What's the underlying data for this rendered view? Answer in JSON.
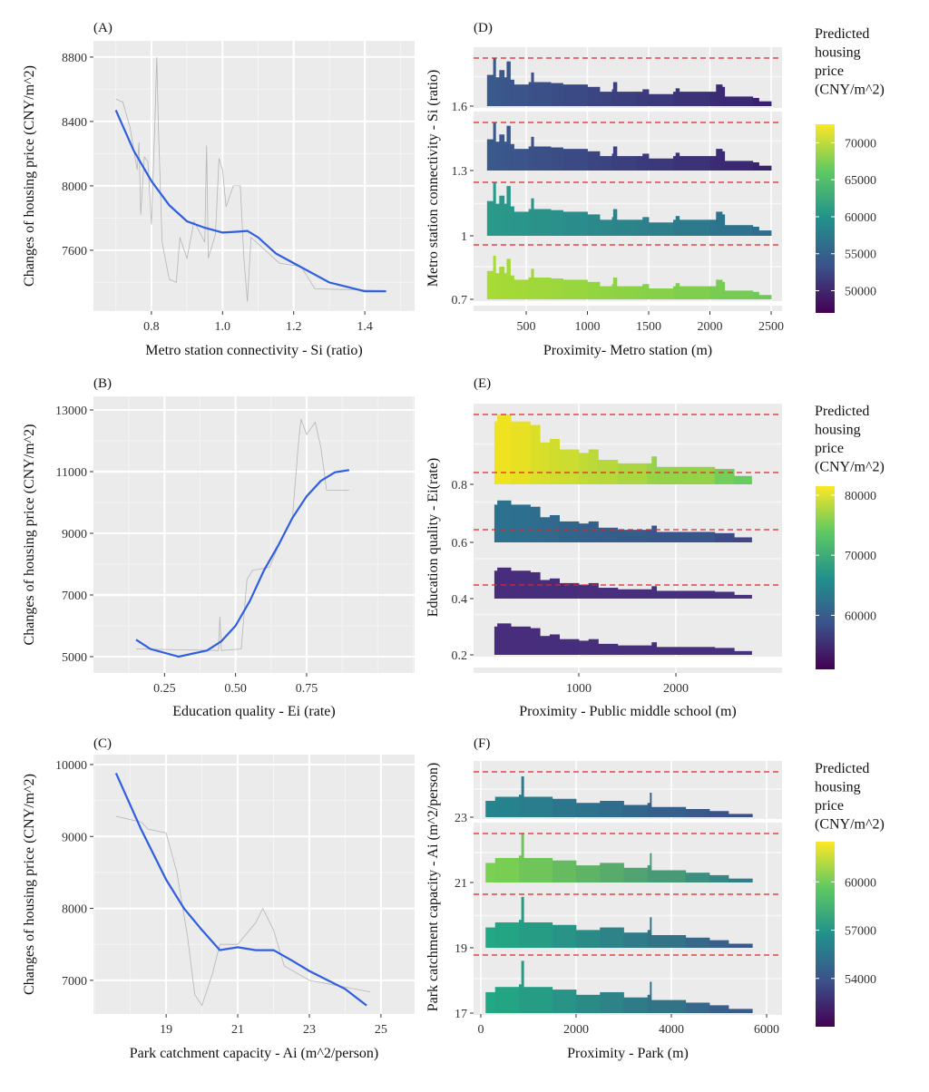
{
  "chart_data": [
    {
      "type": "line",
      "panel_label": "(A)",
      "xlabel": "Metro station connectivity - Si (ratio)",
      "ylabel": "Changes of housing price (CNY/m^2)",
      "xlim": [
        0.637,
        1.54
      ],
      "ylim": [
        7222,
        8901
      ],
      "xticks": [
        0.8,
        1.0,
        1.2,
        1.4
      ],
      "xtick_labels": [
        "0.8",
        "1.0",
        "1.2",
        "1.4"
      ],
      "yticks": [
        7600,
        8000,
        8400,
        8800
      ],
      "ytick_labels": [
        "7600",
        "8000",
        "8400",
        "8800"
      ],
      "grid": true,
      "series": [
        {
          "name": "raw",
          "color": "#b5b5b5",
          "points": [
            [
              0.7,
              8540
            ],
            [
              0.72,
              8520
            ],
            [
              0.74,
              8360
            ],
            [
              0.76,
              8100
            ],
            [
              0.765,
              8270
            ],
            [
              0.77,
              7820
            ],
            [
              0.78,
              8180
            ],
            [
              0.79,
              8150
            ],
            [
              0.8,
              7760
            ],
            [
              0.81,
              8400
            ],
            [
              0.815,
              8800
            ],
            [
              0.82,
              8350
            ],
            [
              0.83,
              7650
            ],
            [
              0.85,
              7420
            ],
            [
              0.87,
              7400
            ],
            [
              0.88,
              7680
            ],
            [
              0.9,
              7550
            ],
            [
              0.92,
              7780
            ],
            [
              0.95,
              7650
            ],
            [
              0.955,
              8250
            ],
            [
              0.96,
              7550
            ],
            [
              0.98,
              7700
            ],
            [
              0.99,
              8170
            ],
            [
              1.0,
              8100
            ],
            [
              1.01,
              7870
            ],
            [
              1.03,
              8000
            ],
            [
              1.05,
              8000
            ],
            [
              1.06,
              7550
            ],
            [
              1.07,
              7280
            ],
            [
              1.08,
              7680
            ],
            [
              1.16,
              7520
            ],
            [
              1.22,
              7500
            ],
            [
              1.26,
              7360
            ],
            [
              1.46,
              7350
            ]
          ]
        },
        {
          "name": "smooth",
          "color": "#2f5fe0",
          "points": [
            [
              0.7,
              8470
            ],
            [
              0.75,
              8220
            ],
            [
              0.8,
              8030
            ],
            [
              0.85,
              7880
            ],
            [
              0.9,
              7780
            ],
            [
              0.95,
              7740
            ],
            [
              1.0,
              7710
            ],
            [
              1.04,
              7715
            ],
            [
              1.07,
              7720
            ],
            [
              1.1,
              7680
            ],
            [
              1.15,
              7580
            ],
            [
              1.2,
              7520
            ],
            [
              1.3,
              7400
            ],
            [
              1.4,
              7345
            ],
            [
              1.46,
              7345
            ]
          ]
        }
      ]
    },
    {
      "type": "line",
      "panel_label": "(B)",
      "xlabel": "Education quality - Ei (rate)",
      "ylabel": "Changes of housing price (CNY/m^2)",
      "xlim": [
        0.0,
        1.13
      ],
      "ylim": [
        4471,
        13441
      ],
      "xticks": [
        0.25,
        0.5,
        0.75
      ],
      "xtick_labels": [
        "0.25",
        "0.50",
        "0.75"
      ],
      "yticks": [
        5000,
        7000,
        9000,
        11000,
        13000
      ],
      "ytick_labels": [
        "5000",
        "7000",
        "9000",
        "11000",
        "13000"
      ],
      "grid": true,
      "series": [
        {
          "name": "raw",
          "color": "#b5b5b5",
          "points": [
            [
              0.15,
              5250
            ],
            [
              0.44,
              5200
            ],
            [
              0.445,
              6300
            ],
            [
              0.45,
              5200
            ],
            [
              0.52,
              5250
            ],
            [
              0.54,
              7500
            ],
            [
              0.56,
              7800
            ],
            [
              0.62,
              7900
            ],
            [
              0.66,
              8800
            ],
            [
              0.7,
              9500
            ],
            [
              0.72,
              11800
            ],
            [
              0.73,
              12700
            ],
            [
              0.75,
              12200
            ],
            [
              0.78,
              12600
            ],
            [
              0.8,
              11800
            ],
            [
              0.82,
              10400
            ],
            [
              0.9,
              10400
            ]
          ]
        },
        {
          "name": "smooth",
          "color": "#2f5fe0",
          "points": [
            [
              0.15,
              5550
            ],
            [
              0.2,
              5250
            ],
            [
              0.3,
              5000
            ],
            [
              0.4,
              5200
            ],
            [
              0.45,
              5500
            ],
            [
              0.5,
              6000
            ],
            [
              0.55,
              6800
            ],
            [
              0.6,
              7800
            ],
            [
              0.65,
              8600
            ],
            [
              0.7,
              9500
            ],
            [
              0.75,
              10200
            ],
            [
              0.8,
              10700
            ],
            [
              0.85,
              10980
            ],
            [
              0.9,
              11050
            ]
          ]
        }
      ]
    },
    {
      "type": "line",
      "panel_label": "(C)",
      "xlabel": "Park catchment capacity  - Ai (m^2/person)",
      "ylabel": "Changes of housing price (CNY/m^2)",
      "xlim": [
        16.97,
        25.94
      ],
      "ylim": [
        6532,
        10138
      ],
      "xticks": [
        19,
        21,
        23,
        25
      ],
      "xtick_labels": [
        "19",
        "21",
        "23",
        "25"
      ],
      "yticks": [
        7000,
        8000,
        9000,
        10000
      ],
      "ytick_labels": [
        "7000",
        "8000",
        "9000",
        "10000"
      ],
      "grid": true,
      "series": [
        {
          "name": "raw",
          "color": "#b5b5b5",
          "points": [
            [
              17.6,
              9280
            ],
            [
              18.3,
              9200
            ],
            [
              18.5,
              9100
            ],
            [
              19,
              9050
            ],
            [
              19.3,
              8500
            ],
            [
              19.6,
              7600
            ],
            [
              19.8,
              6800
            ],
            [
              20.0,
              6650
            ],
            [
              20.3,
              7100
            ],
            [
              20.5,
              7500
            ],
            [
              21,
              7500
            ],
            [
              21.5,
              7800
            ],
            [
              21.7,
              8000
            ],
            [
              22,
              7700
            ],
            [
              22.3,
              7200
            ],
            [
              23,
              7000
            ],
            [
              24.7,
              6840
            ]
          ]
        },
        {
          "name": "smooth",
          "color": "#2f5fe0",
          "points": [
            [
              17.6,
              9880
            ],
            [
              18.3,
              9100
            ],
            [
              19,
              8400
            ],
            [
              19.5,
              8000
            ],
            [
              20,
              7700
            ],
            [
              20.5,
              7420
            ],
            [
              21,
              7460
            ],
            [
              21.5,
              7420
            ],
            [
              22,
              7420
            ],
            [
              22.5,
              7280
            ],
            [
              23,
              7130
            ],
            [
              24,
              6880
            ],
            [
              24.6,
              6650
            ]
          ]
        }
      ]
    },
    {
      "type": "area",
      "panel_label": "(D)",
      "xlabel": "Proximity- Metro station (m)",
      "ylabel": "Metro station connectivity - Si (ratio)",
      "xlim": [
        70,
        2589
      ],
      "xticks": [
        500,
        1000,
        1500,
        2000,
        2500
      ],
      "xtick_labels": [
        "500",
        "1000",
        "1500",
        "2000",
        "2500"
      ],
      "facet_levels": [
        "1.6",
        "1.3",
        "1",
        "0.7"
      ],
      "profile": [
        [
          180,
          0.65
        ],
        [
          230,
          1.0
        ],
        [
          250,
          0.6
        ],
        [
          280,
          0.75
        ],
        [
          320,
          0.6
        ],
        [
          340,
          0.93
        ],
        [
          370,
          0.55
        ],
        [
          400,
          0.45
        ],
        [
          520,
          0.5
        ],
        [
          540,
          0.7
        ],
        [
          560,
          0.5
        ],
        [
          700,
          0.48
        ],
        [
          800,
          0.45
        ],
        [
          1000,
          0.4
        ],
        [
          1100,
          0.3
        ],
        [
          1200,
          0.35
        ],
        [
          1210,
          0.5
        ],
        [
          1240,
          0.3
        ],
        [
          1400,
          0.3
        ],
        [
          1450,
          0.35
        ],
        [
          1500,
          0.25
        ],
        [
          1700,
          0.3
        ],
        [
          1720,
          0.37
        ],
        [
          1750,
          0.3
        ],
        [
          2000,
          0.3
        ],
        [
          2050,
          0.45
        ],
        [
          2100,
          0.4
        ],
        [
          2120,
          0.2
        ],
        [
          2350,
          0.17
        ],
        [
          2400,
          0.1
        ],
        [
          2500,
          0.03
        ]
      ],
      "facet_colors": [
        [
          "#3b5a8c",
          "#3b1f6e"
        ],
        [
          "#3b5a8c",
          "#3b1f6e"
        ],
        [
          "#2a9a8a",
          "#2f6a8d"
        ],
        [
          "#a8db34",
          "#6cc85a"
        ]
      ],
      "facet_scale": [
        1,
        1,
        1,
        0.8
      ],
      "legend": {
        "title": [
          "Predicted",
          "housing",
          "price",
          "(CNY/m^2)"
        ],
        "range": [
          47000,
          72500
        ],
        "ticks": [
          70000,
          65000,
          60000,
          55000,
          50000
        ],
        "tick_labels": [
          "70000",
          "65000",
          "60000",
          "55000",
          "50000"
        ]
      }
    },
    {
      "type": "area",
      "panel_label": "(E)",
      "xlabel": "Proximity - Public middle school (m)",
      "ylabel": "Education quality - Ei(rate)",
      "xlim": [
        -84,
        3093
      ],
      "xticks": [
        1000,
        2000
      ],
      "xtick_labels": [
        "1000",
        "2000"
      ],
      "facet_levels": [
        "0.8",
        "0.6",
        "0.4",
        "0.2"
      ],
      "profile": [
        [
          130,
          0.9
        ],
        [
          160,
          1.0
        ],
        [
          300,
          0.9
        ],
        [
          500,
          0.85
        ],
        [
          600,
          0.6
        ],
        [
          700,
          0.65
        ],
        [
          800,
          0.5
        ],
        [
          1000,
          0.45
        ],
        [
          1100,
          0.5
        ],
        [
          1200,
          0.35
        ],
        [
          1400,
          0.3
        ],
        [
          1700,
          0.3
        ],
        [
          1750,
          0.4
        ],
        [
          1800,
          0.25
        ],
        [
          2400,
          0.22
        ],
        [
          2600,
          0.12
        ],
        [
          2780,
          0.05
        ]
      ],
      "facet_colors": [
        [
          "#f1e21f",
          "#5ec962"
        ],
        [
          "#2c728e",
          "#414487"
        ],
        [
          "#472d7b",
          "#46327e"
        ],
        [
          "#472d7b",
          "#46327e"
        ]
      ],
      "facet_scale": [
        1,
        0.6,
        0.45,
        0.45
      ],
      "legend": {
        "title": [
          "Predicted",
          "housing",
          "price",
          "(CNY/m^2)"
        ],
        "range": [
          51000,
          81500
        ],
        "ticks": [
          80000,
          70000,
          60000
        ],
        "tick_labels": [
          "80000",
          "70000",
          "60000"
        ]
      }
    },
    {
      "type": "area",
      "panel_label": "(F)",
      "xlabel": "Proximity - Park (m)",
      "ylabel": "Park catchment capacity - Ai (m^2/person)",
      "xlim": [
        -152,
        6324
      ],
      "xticks": [
        0,
        2000,
        4000,
        6000
      ],
      "xtick_labels": [
        "0",
        "2000",
        "4000",
        "6000"
      ],
      "facet_levels": [
        "23",
        "21",
        "19",
        "17"
      ],
      "profile": [
        [
          100,
          0.4
        ],
        [
          300,
          0.5
        ],
        [
          800,
          0.55
        ],
        [
          850,
          1.0
        ],
        [
          900,
          0.5
        ],
        [
          1500,
          0.45
        ],
        [
          2000,
          0.35
        ],
        [
          2500,
          0.4
        ],
        [
          3000,
          0.3
        ],
        [
          3500,
          0.35
        ],
        [
          3550,
          0.6
        ],
        [
          3580,
          0.25
        ],
        [
          4300,
          0.2
        ],
        [
          4800,
          0.15
        ],
        [
          5200,
          0.08
        ],
        [
          5700,
          0.02
        ]
      ],
      "facet_colors": [
        [
          "#25858e",
          "#3e4a89"
        ],
        [
          "#7ad151",
          "#2a788e"
        ],
        [
          "#22a884",
          "#3b528b"
        ],
        [
          "#22a884",
          "#3b528b"
        ]
      ],
      "facet_scale": [
        0.9,
        1,
        0.95,
        0.9
      ],
      "legend": {
        "title": [
          "Predicted",
          "housing",
          "price",
          "(CNY/m^2)"
        ],
        "range": [
          51000,
          62500
        ],
        "ticks": [
          60000,
          57000,
          54000
        ],
        "tick_labels": [
          "60000",
          "57000",
          "54000"
        ]
      }
    }
  ]
}
